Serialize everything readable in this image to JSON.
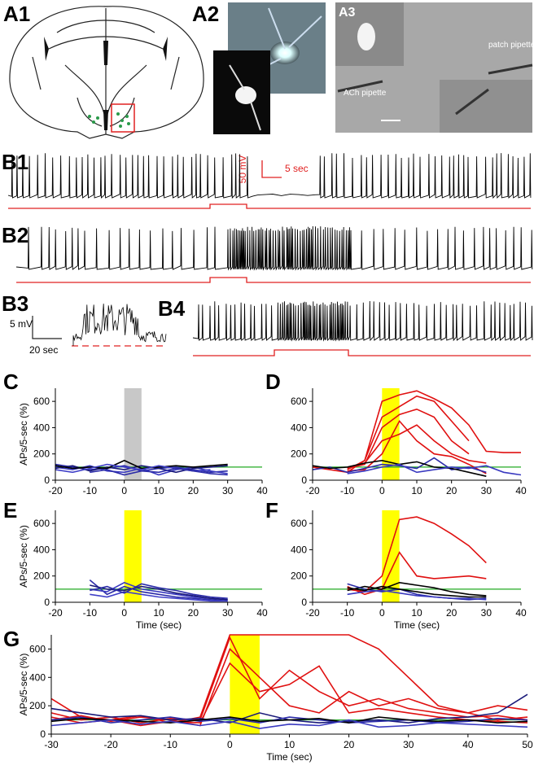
{
  "panel_labels": {
    "a1": "A1",
    "a2": "A2",
    "a3": "A3",
    "b1": "B1",
    "b2": "B2",
    "b3": "B3",
    "b4": "B4",
    "c": "C",
    "d": "D",
    "e": "E",
    "f": "F",
    "g": "G"
  },
  "image_labels": {
    "patch": "patch pipette",
    "ach": "ACh pipette"
  },
  "scale_bars": {
    "b1_voltage": "50 mV",
    "b1_time": "5 sec",
    "b3_voltage": "5 mV",
    "b3_time": "20 sec"
  },
  "chart_data": [
    {
      "type": "line",
      "ylabel": "APs/5-sec (%)",
      "xlim": [
        -20,
        40
      ],
      "ylim": [
        0,
        700
      ],
      "xticks": [
        -20,
        -10,
        0,
        10,
        20,
        30,
        40
      ],
      "yticks": [
        0,
        200,
        400,
        600
      ],
      "highlight": {
        "range": [
          0,
          5
        ],
        "color": "#c8c8c8"
      },
      "reference": {
        "value": 100,
        "color": "#22aa22"
      },
      "x": [
        -20,
        -15,
        -10,
        -5,
        0,
        5,
        10,
        15,
        20,
        25,
        30
      ],
      "series": [
        {
          "color": "#2b2ba8",
          "values": [
            120,
            100,
            80,
            90,
            110,
            70,
            90,
            100,
            80,
            60,
            70
          ]
        },
        {
          "color": "#3a3ac0",
          "values": [
            100,
            80,
            110,
            70,
            60,
            90,
            40,
            80,
            100,
            70,
            50
          ]
        },
        {
          "color": "#1a1a7a",
          "values": [
            90,
            110,
            70,
            100,
            80,
            110,
            90,
            60,
            90,
            100,
            110
          ]
        },
        {
          "color": "#000000",
          "values": [
            110,
            90,
            100,
            90,
            150,
            90,
            100,
            110,
            100,
            110,
            120
          ]
        },
        {
          "color": "#4040c8",
          "values": [
            80,
            60,
            90,
            120,
            100,
            80,
            110,
            90,
            70,
            80,
            null
          ]
        },
        {
          "color": "#2b2ba8",
          "values": [
            null,
            null,
            60,
            80,
            40,
            70,
            60,
            90,
            70,
            50,
            40
          ]
        }
      ]
    },
    {
      "type": "line",
      "xlim": [
        -20,
        40
      ],
      "ylim": [
        0,
        700
      ],
      "xticks": [
        -20,
        -10,
        0,
        10,
        20,
        30,
        40
      ],
      "yticks": [
        0,
        200,
        400,
        600
      ],
      "highlight": {
        "range": [
          0,
          5
        ],
        "color": "#ffff00"
      },
      "reference": {
        "value": 100,
        "color": "#22aa22"
      },
      "x": [
        -20,
        -15,
        -10,
        -5,
        0,
        5,
        10,
        15,
        20,
        25,
        30,
        35,
        40
      ],
      "series": [
        {
          "color": "#e01010",
          "values": [
            null,
            null,
            80,
            150,
            480,
            560,
            640,
            600,
            450,
            300,
            null,
            null,
            null
          ]
        },
        {
          "color": "#e01010",
          "values": [
            100,
            80,
            60,
            150,
            600,
            650,
            680,
            620,
            550,
            420,
            220,
            210,
            210
          ]
        },
        {
          "color": "#e01010",
          "values": [
            null,
            null,
            90,
            120,
            400,
            500,
            540,
            480,
            300,
            200,
            null,
            null,
            null
          ]
        },
        {
          "color": "#e01010",
          "values": [
            null,
            null,
            100,
            130,
            300,
            350,
            420,
            300,
            200,
            150,
            130,
            null,
            null
          ]
        },
        {
          "color": "#e01010",
          "values": [
            null,
            null,
            70,
            80,
            200,
            450,
            300,
            200,
            180,
            120,
            50,
            null,
            null
          ]
        },
        {
          "color": "#2b2ba8",
          "values": [
            80,
            100,
            60,
            90,
            120,
            110,
            90,
            170,
            80,
            100,
            60,
            null,
            null
          ]
        },
        {
          "color": "#000000",
          "values": [
            110,
            90,
            100,
            130,
            150,
            120,
            140,
            100,
            90,
            60,
            30,
            null,
            null
          ]
        },
        {
          "color": "#3a3ac0",
          "values": [
            null,
            null,
            50,
            70,
            100,
            120,
            60,
            80,
            100,
            90,
            110,
            60,
            40
          ]
        }
      ]
    },
    {
      "type": "line",
      "ylabel": "APs/5-sec (%)",
      "xlabel": "Time (sec)",
      "xlim": [
        -20,
        40
      ],
      "ylim": [
        0,
        700
      ],
      "xticks": [
        -20,
        -10,
        0,
        10,
        20,
        30,
        40
      ],
      "yticks": [
        0,
        200,
        400,
        600
      ],
      "highlight": {
        "range": [
          0,
          5
        ],
        "color": "#ffff00"
      },
      "reference": {
        "value": 100,
        "color": "#22aa22"
      },
      "x": [
        -10,
        -5,
        0,
        5,
        10,
        15,
        20,
        25,
        30
      ],
      "series": [
        {
          "color": "#2b2ba8",
          "values": [
            170,
            60,
            120,
            80,
            60,
            40,
            30,
            20,
            10
          ]
        },
        {
          "color": "#3a3ac0",
          "values": [
            100,
            80,
            150,
            100,
            80,
            60,
            40,
            30,
            20
          ]
        },
        {
          "color": "#1a1a7a",
          "values": [
            130,
            100,
            90,
            120,
            100,
            70,
            50,
            30,
            20
          ]
        },
        {
          "color": "#4040c8",
          "values": [
            60,
            40,
            80,
            60,
            40,
            30,
            20,
            10,
            10
          ]
        },
        {
          "color": "#2b2ba8",
          "values": [
            90,
            120,
            70,
            140,
            110,
            90,
            60,
            40,
            30
          ]
        }
      ]
    },
    {
      "type": "line",
      "xlabel": "Time (sec)",
      "xlim": [
        -20,
        40
      ],
      "ylim": [
        0,
        700
      ],
      "xticks": [
        -20,
        -10,
        0,
        10,
        20,
        30,
        40
      ],
      "yticks": [
        0,
        200,
        400,
        600
      ],
      "highlight": {
        "range": [
          0,
          5
        ],
        "color": "#ffff00"
      },
      "reference": {
        "value": 100,
        "color": "#22aa22"
      },
      "x": [
        -10,
        -5,
        0,
        5,
        10,
        15,
        20,
        25,
        30
      ],
      "series": [
        {
          "color": "#e01010",
          "values": [
            100,
            80,
            200,
            630,
            650,
            600,
            520,
            430,
            300
          ]
        },
        {
          "color": "#e01010",
          "values": [
            120,
            60,
            100,
            380,
            200,
            180,
            190,
            200,
            180
          ]
        },
        {
          "color": "#000000",
          "values": [
            90,
            120,
            100,
            150,
            130,
            110,
            80,
            60,
            50
          ]
        },
        {
          "color": "#2b2ba8",
          "values": [
            140,
            100,
            80,
            100,
            60,
            40,
            30,
            20,
            30
          ]
        },
        {
          "color": "#3a3ac0",
          "values": [
            60,
            80,
            90,
            70,
            50,
            40,
            30,
            30,
            20
          ]
        },
        {
          "color": "#000000",
          "values": [
            110,
            90,
            120,
            100,
            80,
            60,
            50,
            40,
            40
          ]
        }
      ]
    },
    {
      "type": "line",
      "ylabel": "APs/5-sec (%)",
      "xlabel": "Time (sec)",
      "xlim": [
        -30,
        50
      ],
      "ylim": [
        0,
        700
      ],
      "xticks": [
        -30,
        -20,
        -10,
        0,
        10,
        20,
        30,
        40,
        50
      ],
      "yticks": [
        0,
        200,
        400,
        600
      ],
      "highlight": {
        "range": [
          0,
          5
        ],
        "color": "#ffff00"
      },
      "reference": {
        "value": 100,
        "color": "#22aa22"
      },
      "x": [
        -30,
        -25,
        -20,
        -15,
        -10,
        -5,
        0,
        5,
        10,
        15,
        20,
        25,
        30,
        35,
        40,
        45,
        50
      ],
      "series": [
        {
          "color": "#e01010",
          "values": [
            250,
            120,
            100,
            130,
            80,
            120,
            700,
            700,
            700,
            700,
            700,
            600,
            400,
            200,
            150,
            100,
            120
          ]
        },
        {
          "color": "#e01010",
          "values": [
            150,
            100,
            120,
            80,
            110,
            100,
            680,
            250,
            450,
            300,
            200,
            250,
            180,
            150,
            120,
            130,
            100
          ]
        },
        {
          "color": "#e01010",
          "values": [
            100,
            130,
            90,
            120,
            100,
            60,
            600,
            400,
            200,
            150,
            300,
            200,
            250,
            180,
            150,
            200,
            170
          ]
        },
        {
          "color": "#e01010",
          "values": [
            120,
            80,
            100,
            60,
            90,
            80,
            500,
            300,
            350,
            480,
            150,
            180,
            150,
            120,
            100,
            90,
            80
          ]
        },
        {
          "color": "#1a1a7a",
          "values": [
            180,
            150,
            120,
            130,
            100,
            110,
            80,
            150,
            100,
            80,
            90,
            100,
            80,
            110,
            120,
            150,
            280
          ]
        },
        {
          "color": "#2b2ba8",
          "values": [
            100,
            120,
            80,
            100,
            120,
            90,
            110,
            80,
            120,
            100,
            80,
            90,
            100,
            80,
            90,
            110,
            100
          ]
        },
        {
          "color": "#000000",
          "values": [
            90,
            110,
            100,
            90,
            80,
            100,
            120,
            90,
            100,
            110,
            80,
            120,
            100,
            90,
            100,
            80,
            90
          ]
        },
        {
          "color": "#3a3ac0",
          "values": [
            60,
            80,
            100,
            70,
            90,
            60,
            90,
            40,
            70,
            60,
            100,
            50,
            60,
            80,
            70,
            60,
            50
          ]
        }
      ]
    }
  ]
}
